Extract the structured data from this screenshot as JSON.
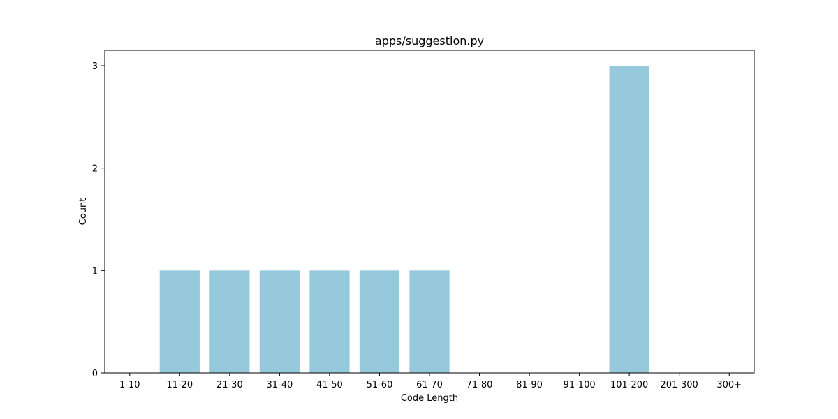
{
  "chart_data": {
    "type": "bar",
    "title": "apps/suggestion.py",
    "xlabel": "Code Length",
    "ylabel": "Count",
    "categories": [
      "1-10",
      "11-20",
      "21-30",
      "31-40",
      "41-50",
      "51-60",
      "61-70",
      "71-80",
      "81-90",
      "91-100",
      "101-200",
      "201-300",
      "300+"
    ],
    "values": [
      0,
      1,
      1,
      1,
      1,
      1,
      1,
      0,
      0,
      0,
      3,
      0,
      0
    ],
    "ylim": [
      0,
      3.15
    ],
    "yticks": [
      0,
      1,
      2,
      3
    ],
    "bar_color": "#96c9dc",
    "grid": false,
    "legend": "none"
  }
}
